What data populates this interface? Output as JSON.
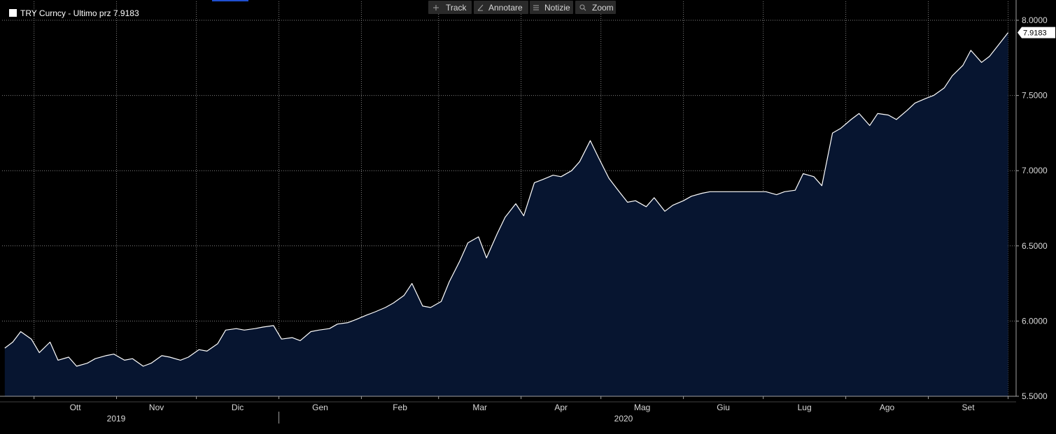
{
  "toolbar": {
    "track_label": "Track",
    "annotate_label": "Annotare",
    "news_label": "Notizie",
    "zoom_label": "Zoom"
  },
  "legend": {
    "text": "TRY Curncy - Ultimo prz 7.9183"
  },
  "last_price_tag": "7.9183",
  "colors": {
    "background": "#000000",
    "line": "#ffffff",
    "fill": "#071530",
    "grid": "#808080",
    "axis_text": "#d9d9d9",
    "toolbar_bg": "#2a2a2a",
    "accent": "#1f4fd0"
  },
  "chart_data": {
    "type": "area",
    "title": "TRY Curncy - Ultimo prz 7.9183",
    "ylim": [
      5.5,
      8.0
    ],
    "y_ticks": [
      "5.5000",
      "6.0000",
      "6.5000",
      "7.0000",
      "7.5000",
      "8.0000"
    ],
    "y_tick_values": [
      5.5,
      6.0,
      6.5,
      7.0,
      7.5,
      8.0
    ],
    "x_month_labels": [
      "Ott",
      "Nov",
      "Dic",
      "Gen",
      "Feb",
      "Mar",
      "Apr",
      "Mag",
      "Giu",
      "Lug",
      "Ago",
      "Set"
    ],
    "x_year_labels": [
      "2019",
      "2020"
    ],
    "grid": true,
    "y_axis_side": "right",
    "last_value": 7.9183,
    "x": [
      "2019-09-20",
      "2019-09-23",
      "2019-09-26",
      "2019-09-30",
      "2019-10-03",
      "2019-10-07",
      "2019-10-10",
      "2019-10-14",
      "2019-10-17",
      "2019-10-21",
      "2019-10-24",
      "2019-10-28",
      "2019-10-31",
      "2019-11-04",
      "2019-11-07",
      "2019-11-11",
      "2019-11-14",
      "2019-11-18",
      "2019-11-21",
      "2019-11-25",
      "2019-11-28",
      "2019-12-02",
      "2019-12-05",
      "2019-12-09",
      "2019-12-12",
      "2019-12-16",
      "2019-12-19",
      "2019-12-23",
      "2019-12-26",
      "2019-12-30",
      "2020-01-02",
      "2020-01-06",
      "2020-01-09",
      "2020-01-13",
      "2020-01-16",
      "2020-01-20",
      "2020-01-23",
      "2020-01-27",
      "2020-01-30",
      "2020-02-03",
      "2020-02-06",
      "2020-02-10",
      "2020-02-13",
      "2020-02-17",
      "2020-02-20",
      "2020-02-24",
      "2020-02-27",
      "2020-03-02",
      "2020-03-05",
      "2020-03-09",
      "2020-03-12",
      "2020-03-16",
      "2020-03-19",
      "2020-03-23",
      "2020-03-26",
      "2020-03-30",
      "2020-04-02",
      "2020-04-06",
      "2020-04-09",
      "2020-04-13",
      "2020-04-16",
      "2020-04-20",
      "2020-04-23",
      "2020-04-27",
      "2020-04-30",
      "2020-05-04",
      "2020-05-07",
      "2020-05-11",
      "2020-05-14",
      "2020-05-18",
      "2020-05-21",
      "2020-05-25",
      "2020-05-28",
      "2020-06-01",
      "2020-06-04",
      "2020-06-08",
      "2020-06-11",
      "2020-06-15",
      "2020-06-18",
      "2020-06-22",
      "2020-06-25",
      "2020-06-29",
      "2020-07-02",
      "2020-07-06",
      "2020-07-09",
      "2020-07-13",
      "2020-07-16",
      "2020-07-20",
      "2020-07-23",
      "2020-07-27",
      "2020-07-30",
      "2020-08-03",
      "2020-08-06",
      "2020-08-10",
      "2020-08-13",
      "2020-08-17",
      "2020-08-20",
      "2020-08-24",
      "2020-08-27",
      "2020-08-31",
      "2020-09-03",
      "2020-09-07",
      "2020-09-10",
      "2020-09-14",
      "2020-09-17",
      "2020-09-21",
      "2020-09-24",
      "2020-09-28",
      "2020-10-01"
    ],
    "series": [
      {
        "values": [
          5.82,
          5.86,
          5.93,
          5.88,
          5.79,
          5.86,
          5.74,
          5.76,
          5.7,
          5.72,
          5.75,
          5.77,
          5.78,
          5.74,
          5.75,
          5.7,
          5.72,
          5.77,
          5.76,
          5.74,
          5.76,
          5.81,
          5.8,
          5.85,
          5.94,
          5.95,
          5.94,
          5.95,
          5.96,
          5.97,
          5.88,
          5.89,
          5.87,
          5.93,
          5.94,
          5.95,
          5.98,
          5.99,
          6.01,
          6.04,
          6.06,
          6.09,
          6.12,
          6.17,
          6.25,
          6.1,
          6.09,
          6.13,
          6.26,
          6.4,
          6.52,
          6.56,
          6.42,
          6.58,
          6.69,
          6.78,
          6.7,
          6.92,
          6.94,
          6.97,
          6.96,
          7.0,
          7.06,
          7.2,
          7.09,
          6.95,
          6.88,
          6.79,
          6.8,
          6.76,
          6.82,
          6.73,
          6.77,
          6.8,
          6.83,
          6.85,
          6.86,
          6.86,
          6.86,
          6.86,
          6.86,
          6.86,
          6.86,
          6.84,
          6.86,
          6.87,
          6.98,
          6.96,
          6.9,
          7.25,
          7.28,
          7.34,
          7.38,
          7.3,
          7.38,
          7.37,
          7.34,
          7.4,
          7.45,
          7.48,
          7.5,
          7.55,
          7.63,
          7.7,
          7.8,
          7.72,
          7.76,
          7.85,
          7.918
        ]
      }
    ]
  }
}
